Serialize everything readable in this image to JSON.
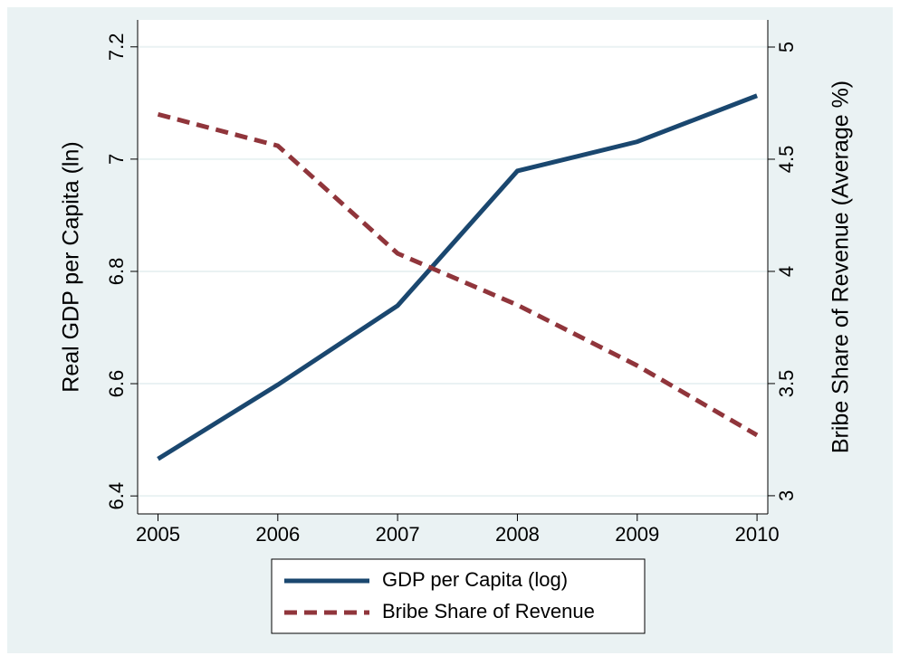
{
  "chart_data": {
    "type": "line",
    "x": [
      2005,
      2006,
      2007,
      2008,
      2009,
      2010
    ],
    "xlim": [
      2004.83,
      2010.09
    ],
    "xticks": [
      2005,
      2006,
      2007,
      2008,
      2009,
      2010
    ],
    "ylabel": "Real GDP per Capita (ln)",
    "y2label": "Bribe Share of Revenue (Average %)",
    "ylim": [
      6.368,
      7.248
    ],
    "yticks": [
      6.4,
      6.6,
      6.8,
      7,
      7.2
    ],
    "y2lim": [
      2.919,
      5.121
    ],
    "y2ticks": [
      3,
      3.5,
      4,
      4.5,
      5
    ],
    "grid": true,
    "series": [
      {
        "name": "GDP per Capita (log)",
        "color": "#1a476f",
        "dash": "solid",
        "values": [
          6.466,
          6.598,
          6.739,
          6.979,
          7.031,
          7.113
        ]
      },
      {
        "name": "Bribe Share of Revenue",
        "color": "#90353b",
        "dash": "dashed",
        "axis": "y2",
        "values": [
          4.7,
          4.56,
          4.08,
          3.85,
          3.58,
          3.27
        ]
      }
    ]
  }
}
